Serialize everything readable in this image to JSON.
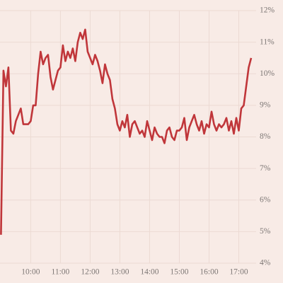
{
  "chart_data": {
    "type": "line",
    "x": [
      "9:00",
      "9:05",
      "9:10",
      "9:15",
      "9:20",
      "9:25",
      "9:30",
      "9:35",
      "9:40",
      "9:45",
      "9:50",
      "9:55",
      "10:00",
      "10:05",
      "10:10",
      "10:15",
      "10:20",
      "10:25",
      "10:30",
      "10:35",
      "10:40",
      "10:45",
      "10:50",
      "10:55",
      "11:00",
      "11:05",
      "11:10",
      "11:15",
      "11:20",
      "11:25",
      "11:30",
      "11:35",
      "11:40",
      "11:45",
      "11:50",
      "11:55",
      "12:00",
      "12:05",
      "12:10",
      "12:15",
      "12:20",
      "12:25",
      "12:30",
      "12:35",
      "12:40",
      "12:45",
      "12:50",
      "12:55",
      "13:00",
      "13:05",
      "13:10",
      "13:15",
      "13:20",
      "13:25",
      "13:30",
      "13:35",
      "13:40",
      "13:45",
      "13:50",
      "13:55",
      "14:00",
      "14:05",
      "14:10",
      "14:15",
      "14:20",
      "14:25",
      "14:30",
      "14:35",
      "14:40",
      "14:45",
      "14:50",
      "14:55",
      "15:00",
      "15:05",
      "15:10",
      "15:15",
      "15:20",
      "15:25",
      "15:30",
      "15:35",
      "15:40",
      "15:45",
      "15:50",
      "15:55",
      "16:00",
      "16:05",
      "16:10",
      "16:15",
      "16:20",
      "16:25",
      "16:30",
      "16:35",
      "16:40",
      "16:45",
      "16:50",
      "16:55",
      "17:00",
      "17:05",
      "17:10",
      "17:15",
      "17:20",
      "17:25"
    ],
    "series": [
      {
        "color": "#c0363a",
        "values": [
          4.9,
          10.1,
          9.6,
          10.2,
          8.2,
          8.1,
          8.5,
          8.7,
          8.9,
          8.4,
          8.4,
          8.4,
          8.5,
          9.0,
          9.0,
          10.0,
          10.7,
          10.3,
          10.5,
          10.6,
          9.9,
          9.5,
          9.8,
          10.1,
          10.2,
          10.9,
          10.4,
          10.7,
          10.5,
          10.8,
          10.4,
          11.0,
          11.3,
          11.1,
          11.4,
          10.7,
          10.5,
          10.3,
          10.6,
          10.4,
          10.1,
          9.7,
          10.3,
          10.0,
          9.8,
          9.2,
          8.9,
          8.4,
          8.2,
          8.5,
          8.3,
          8.7,
          8.0,
          8.4,
          8.5,
          8.3,
          8.1,
          8.2,
          8.0,
          8.5,
          8.2,
          7.9,
          8.3,
          8.1,
          8.0,
          8.0,
          7.8,
          8.2,
          8.3,
          8.0,
          7.9,
          8.2,
          8.2,
          8.3,
          8.6,
          7.9,
          8.3,
          8.5,
          8.7,
          8.4,
          8.2,
          8.5,
          8.1,
          8.4,
          8.3,
          8.8,
          8.4,
          8.2,
          8.4,
          8.3,
          8.4,
          8.6,
          8.2,
          8.5,
          8.1,
          8.6,
          8.2,
          8.9,
          9.0,
          9.6,
          10.2,
          10.5
        ]
      }
    ],
    "xlim": [
      "8:58",
      "17:35"
    ],
    "xticks": [
      "10:00",
      "11:00",
      "12:00",
      "13:00",
      "14:00",
      "15:00",
      "16:00",
      "17:00"
    ],
    "ylim": [
      4,
      12
    ],
    "yticks": [
      {
        "value": 4,
        "label": "4%"
      },
      {
        "value": 5,
        "label": "5%"
      },
      {
        "value": 6,
        "label": "6%"
      },
      {
        "value": 7,
        "label": "7%"
      },
      {
        "value": 8,
        "label": "8%"
      },
      {
        "value": 9,
        "label": "9%"
      },
      {
        "value": 10,
        "label": "10%"
      },
      {
        "value": 11,
        "label": "11%"
      },
      {
        "value": 12,
        "label": "12%"
      }
    ],
    "grid": true
  }
}
